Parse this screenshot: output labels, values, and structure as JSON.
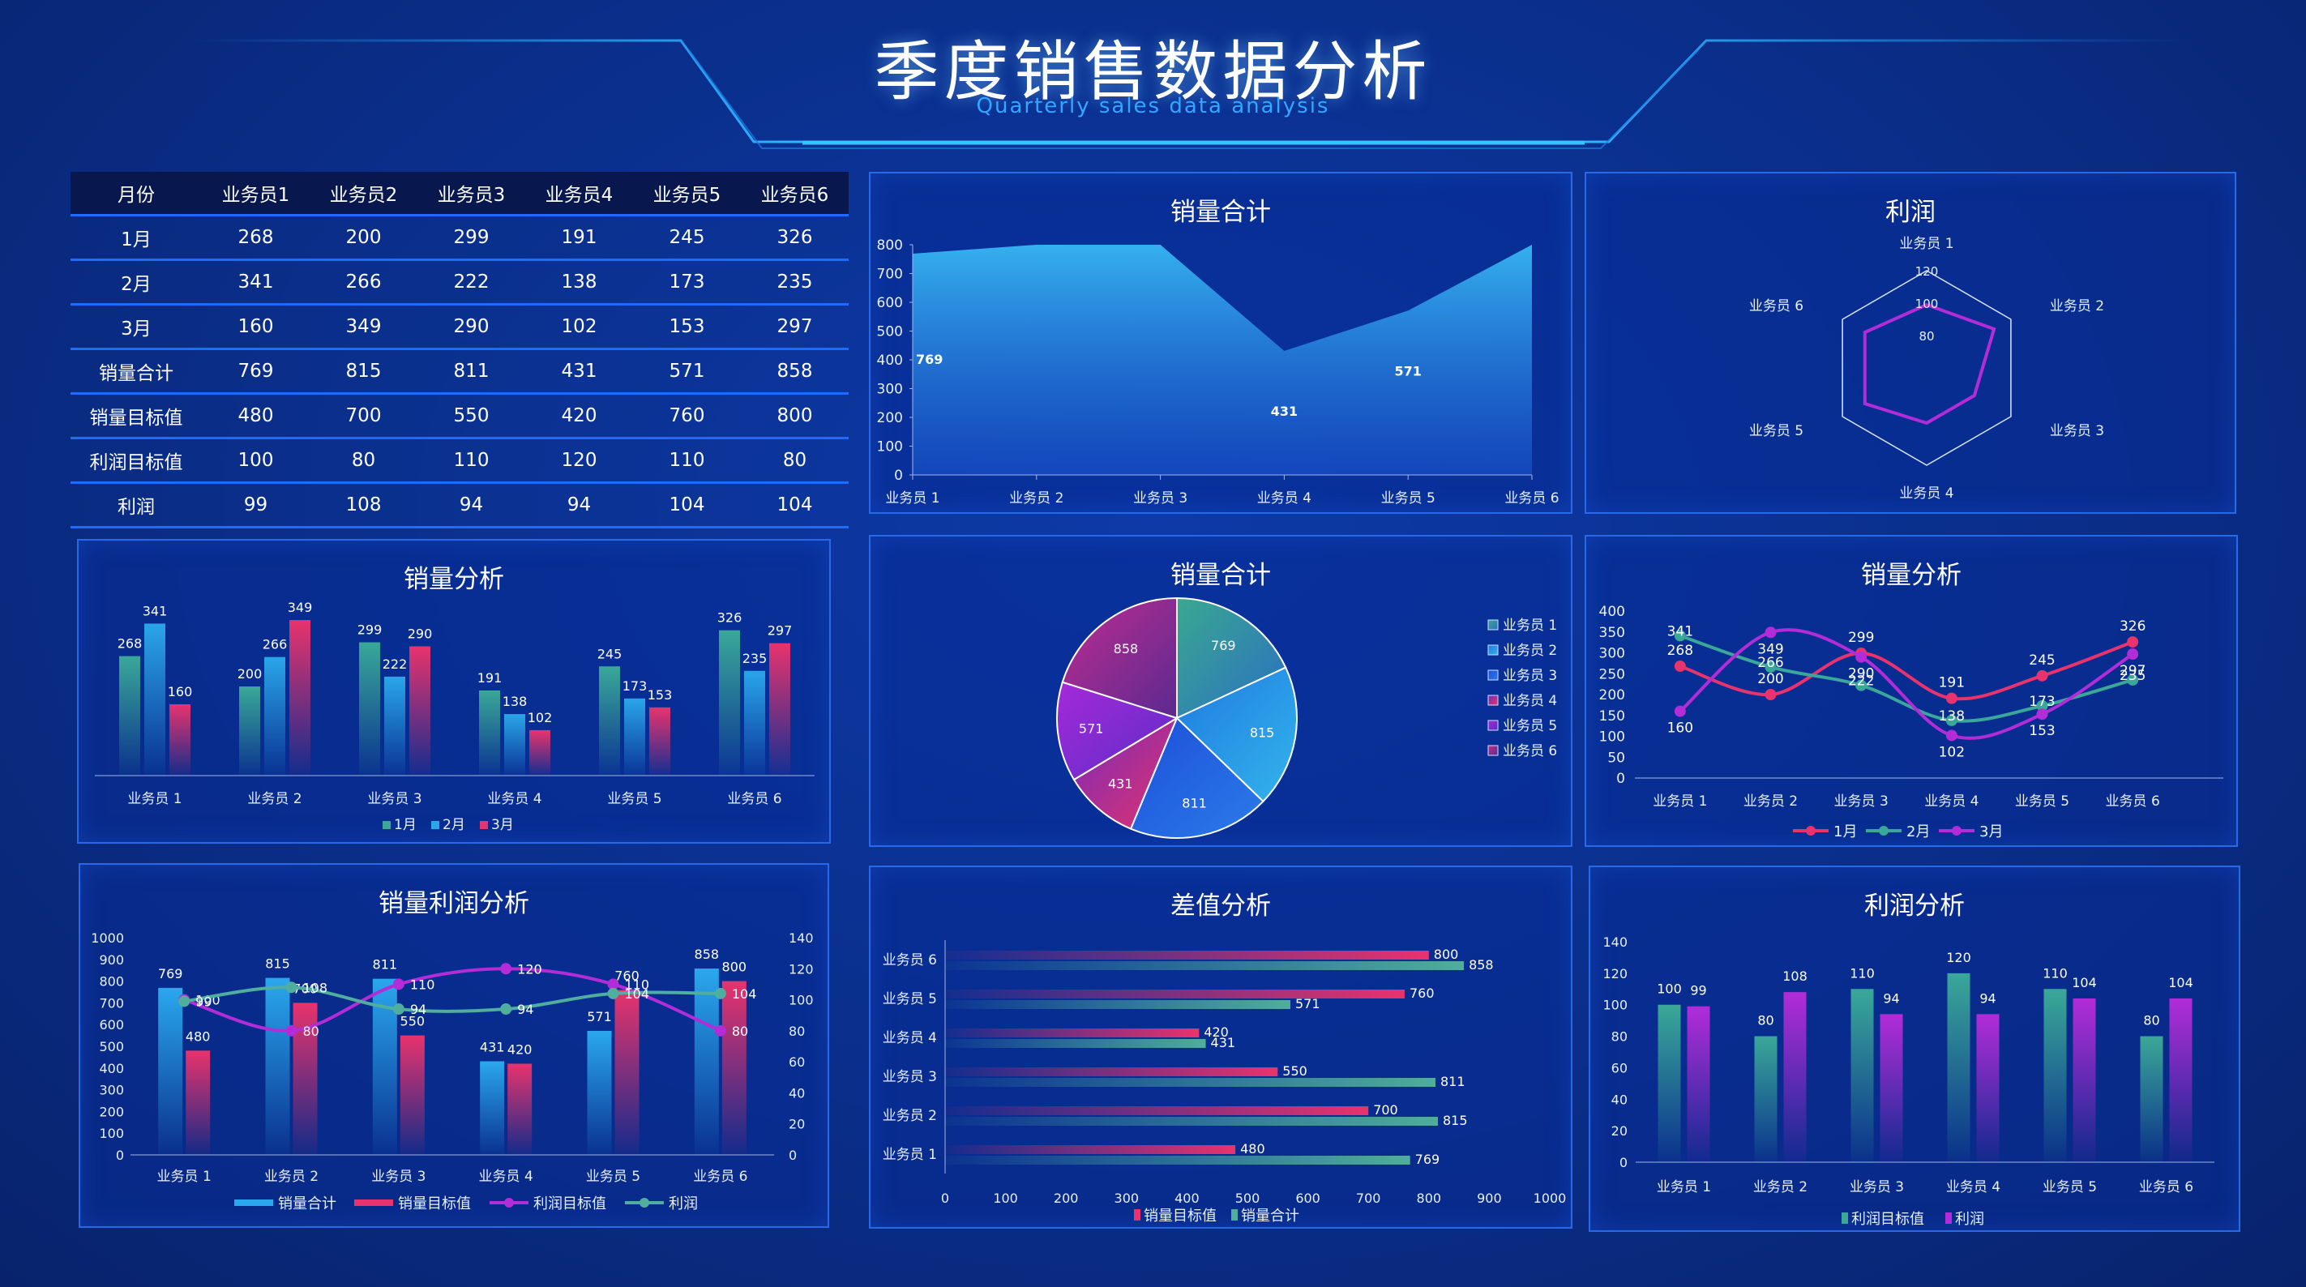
{
  "header": {
    "title": "季度销售数据分析",
    "subtitle": "Quarterly sales data analysis"
  },
  "colors": {
    "teal": "#3aa898",
    "blue": "#2aa6ea",
    "red": "#e8336d",
    "purple": "#b22cd8",
    "panel_border": "#2769e6",
    "bg": "#0b2e8c"
  },
  "table": {
    "headers": [
      "月份",
      "业务员1",
      "业务员2",
      "业务员3",
      "业务员4",
      "业务员5",
      "业务员6"
    ],
    "rows": [
      [
        "1月",
        "268",
        "200",
        "299",
        "191",
        "245",
        "326"
      ],
      [
        "2月",
        "341",
        "266",
        "222",
        "138",
        "173",
        "235"
      ],
      [
        "3月",
        "160",
        "349",
        "290",
        "102",
        "153",
        "297"
      ],
      [
        "销量合计",
        "769",
        "815",
        "811",
        "431",
        "571",
        "858"
      ],
      [
        "销量目标值",
        "480",
        "700",
        "550",
        "420",
        "760",
        "800"
      ],
      [
        "利润目标值",
        "100",
        "80",
        "110",
        "120",
        "110",
        "80"
      ],
      [
        "利润",
        "99",
        "108",
        "94",
        "94",
        "104",
        "104"
      ]
    ]
  },
  "chart_data": [
    {
      "id": "area",
      "type": "area",
      "title": "销量合计",
      "categories": [
        "业务员 1",
        "业务员 2",
        "业务员 3",
        "业务员 4",
        "业务员 5",
        "业务员 6"
      ],
      "values": [
        769,
        815,
        811,
        431,
        571,
        858
      ],
      "ylim": [
        0,
        800
      ],
      "yticks": [
        "0",
        "100",
        "200",
        "300",
        "400",
        "500",
        "600",
        "700",
        "800"
      ],
      "data_labels": [
        "769",
        "",
        "",
        "431",
        "571",
        ""
      ]
    },
    {
      "id": "radar",
      "type": "radar",
      "title": "利润",
      "categories": [
        "业务员 1",
        "业务员 2",
        "业务员 3",
        "业务员 4",
        "业务员 5",
        "业务员 6"
      ],
      "values": [
        99,
        108,
        94,
        94,
        104,
        104
      ],
      "rlim": [
        60,
        120
      ],
      "rticks": [
        "80",
        "100",
        "120"
      ]
    },
    {
      "id": "bar1",
      "type": "bar",
      "title": "销量分析",
      "categories": [
        "业务员 1",
        "业务员 2",
        "业务员 3",
        "业务员 4",
        "业务员 5",
        "业务员 6"
      ],
      "series": [
        {
          "name": "1月",
          "values": [
            268,
            200,
            299,
            191,
            245,
            326
          ]
        },
        {
          "name": "2月",
          "values": [
            341,
            266,
            222,
            138,
            173,
            235
          ]
        },
        {
          "name": "3月",
          "values": [
            160,
            349,
            290,
            102,
            153,
            297
          ]
        }
      ],
      "ylim": [
        0,
        400
      ]
    },
    {
      "id": "pie",
      "type": "pie",
      "title": "销量合计",
      "categories": [
        "业务员 1",
        "业务员 2",
        "业务员 3",
        "业务员 4",
        "业务员 5",
        "业务员 6"
      ],
      "values": [
        769,
        815,
        811,
        431,
        571,
        858
      ]
    },
    {
      "id": "line1",
      "type": "line",
      "title": "销量分析",
      "categories": [
        "业务员 1",
        "业务员 2",
        "业务员 3",
        "业务员 4",
        "业务员 5",
        "业务员 6"
      ],
      "series": [
        {
          "name": "1月",
          "values": [
            268,
            200,
            299,
            191,
            245,
            326
          ]
        },
        {
          "name": "2月",
          "values": [
            341,
            266,
            222,
            138,
            173,
            235
          ]
        },
        {
          "name": "3月",
          "values": [
            160,
            349,
            290,
            102,
            153,
            297
          ]
        }
      ],
      "ylim": [
        0,
        400
      ],
      "yticks": [
        "0",
        "50",
        "100",
        "150",
        "200",
        "250",
        "300",
        "350",
        "400"
      ]
    },
    {
      "id": "combo",
      "type": "bar",
      "title": "销量利润分析",
      "categories": [
        "业务员 1",
        "业务员 2",
        "业务员 3",
        "业务员 4",
        "业务员 5",
        "业务员 6"
      ],
      "series": [
        {
          "name": "销量合计",
          "values": [
            769,
            815,
            811,
            431,
            571,
            858
          ]
        },
        {
          "name": "销量目标值",
          "values": [
            480,
            700,
            550,
            420,
            760,
            800
          ]
        },
        {
          "name": "利润目标值",
          "values": [
            100,
            80,
            110,
            120,
            110,
            80
          ]
        },
        {
          "name": "利润",
          "values": [
            99,
            108,
            94,
            94,
            104,
            104
          ]
        }
      ],
      "ylim": [
        0,
        1000
      ],
      "y2lim": [
        0,
        140
      ],
      "yticks": [
        "0",
        "100",
        "200",
        "300",
        "400",
        "500",
        "600",
        "700",
        "800",
        "900",
        "1000"
      ],
      "y2ticks": [
        "0",
        "20",
        "40",
        "60",
        "80",
        "100",
        "120",
        "140"
      ]
    },
    {
      "id": "hbar",
      "type": "bar",
      "title": "差值分析",
      "categories": [
        "业务员 1",
        "业务员 2",
        "业务员 3",
        "业务员 4",
        "业务员 5",
        "业务员 6"
      ],
      "series": [
        {
          "name": "销量目标值",
          "values": [
            480,
            700,
            550,
            420,
            760,
            800
          ]
        },
        {
          "name": "销量合计",
          "values": [
            769,
            815,
            811,
            431,
            571,
            858
          ]
        }
      ],
      "xlim": [
        0,
        1000
      ],
      "xticks": [
        "0",
        "100",
        "200",
        "300",
        "400",
        "500",
        "600",
        "700",
        "800",
        "900",
        "1000"
      ]
    },
    {
      "id": "bar2",
      "type": "bar",
      "title": "利润分析",
      "categories": [
        "业务员 1",
        "业务员 2",
        "业务员 3",
        "业务员 4",
        "业务员 5",
        "业务员 6"
      ],
      "series": [
        {
          "name": "利润目标值",
          "values": [
            100,
            80,
            110,
            120,
            110,
            80
          ]
        },
        {
          "name": "利润",
          "values": [
            99,
            108,
            94,
            94,
            104,
            104
          ]
        }
      ],
      "ylim": [
        0,
        140
      ],
      "yticks": [
        "0",
        "20",
        "40",
        "60",
        "80",
        "100",
        "120",
        "140"
      ]
    }
  ]
}
